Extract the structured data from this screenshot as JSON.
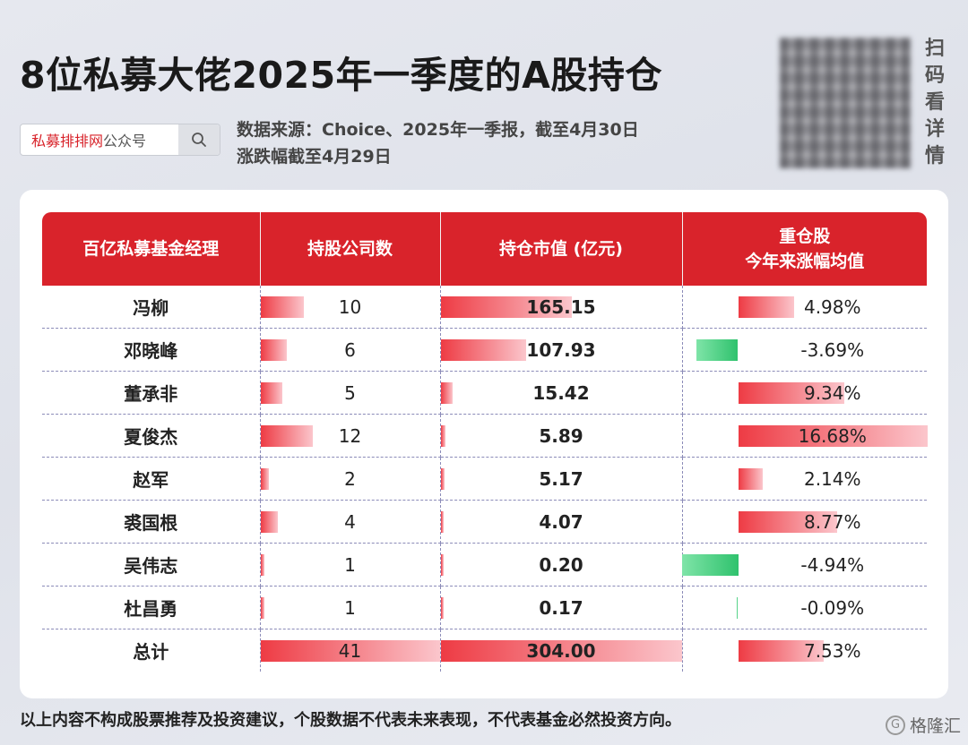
{
  "header": {
    "title": "8位私募大佬2025年一季度的A股持仓",
    "search_brand": "私募排排网",
    "search_suffix": "公众号",
    "source_line1": "数据来源：Choice、2025年一季报，截至4月30日",
    "source_line2": "涨跌幅截至4月29日",
    "qr_label": "扫码看详情"
  },
  "table": {
    "columns": [
      "百亿私募基金经理",
      "持股公司数",
      "持仓市值 (亿元)",
      "重仓股\n今年来涨幅均值"
    ],
    "rows": [
      {
        "name": "冯柳",
        "companies": "10",
        "value": "165.15",
        "pct": "4.98%",
        "pct_num": 4.98
      },
      {
        "name": "邓晓峰",
        "companies": "6",
        "value": "107.93",
        "pct": "-3.69%",
        "pct_num": -3.69
      },
      {
        "name": "董承非",
        "companies": "5",
        "value": "15.42",
        "pct": "9.34%",
        "pct_num": 9.34
      },
      {
        "name": "夏俊杰",
        "companies": "12",
        "value": "5.89",
        "pct": "16.68%",
        "pct_num": 16.68
      },
      {
        "name": "赵军",
        "companies": "2",
        "value": "5.17",
        "pct": "2.14%",
        "pct_num": 2.14
      },
      {
        "name": "裘国根",
        "companies": "4",
        "value": "4.07",
        "pct": "8.77%",
        "pct_num": 8.77
      },
      {
        "name": "吴伟志",
        "companies": "1",
        "value": "0.20",
        "pct": "-4.94%",
        "pct_num": -4.94
      },
      {
        "name": "杜昌勇",
        "companies": "1",
        "value": "0.17",
        "pct": "-0.09%",
        "pct_num": -0.09
      }
    ],
    "total": {
      "name": "总计",
      "companies": "41",
      "value": "304.00",
      "pct": "7.53%",
      "pct_num": 7.53
    }
  },
  "footer": {
    "disclaimer": "以上内容不构成股票推荐及投资建议，个股数据不代表未来表现，不代表基金必然投资方向。",
    "logo_text": "格隆汇"
  },
  "colors": {
    "header_red": "#d9232b",
    "bar_red": "#ee3b44",
    "bar_green": "#2fc26d"
  },
  "icons": [
    "search-icon",
    "logo-icon"
  ]
}
